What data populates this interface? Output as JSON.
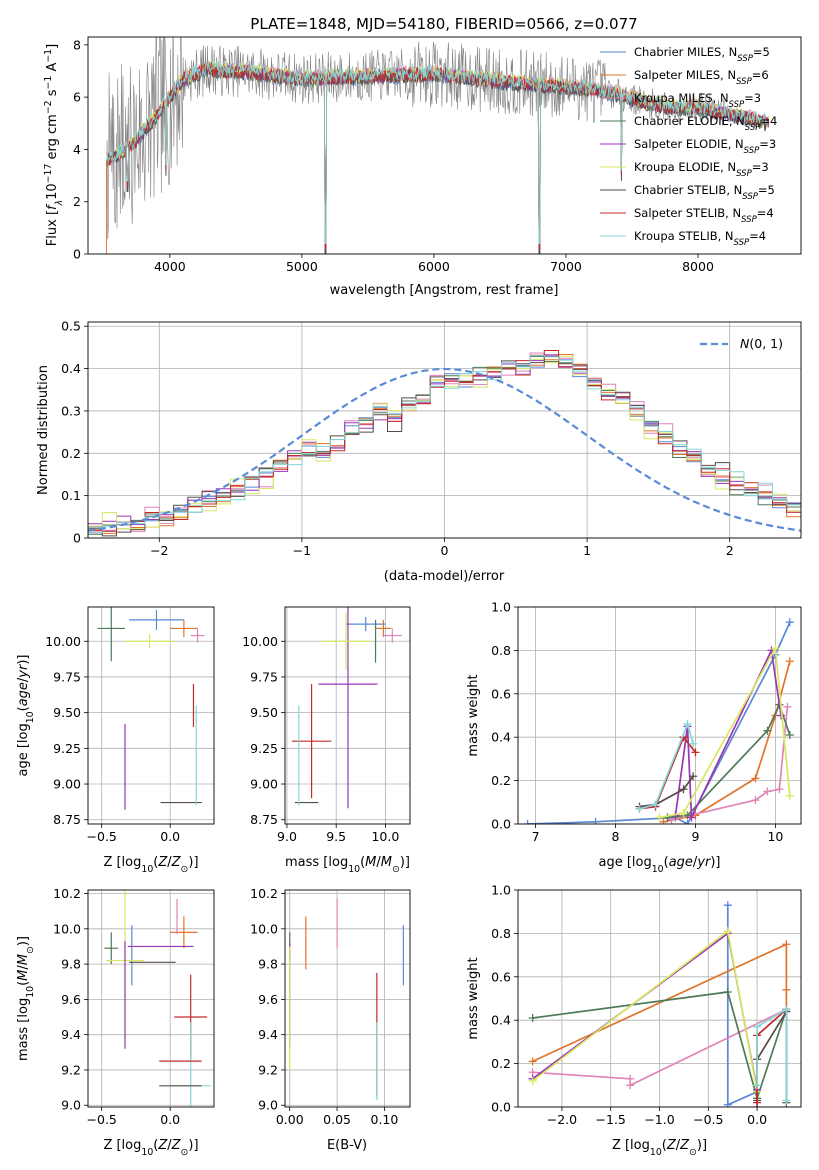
{
  "figure_title": "PLATE=1848, MJD=54180, FIBERID=0566, z=0.077",
  "colors": {
    "Chabrier MILES": "#5b87d4",
    "Salpeter MILES": "#e0742a",
    "Kroupa MILES": "#e084b8",
    "Chabrier ELODIE": "#4f7a58",
    "Salpeter ELODIE": "#9b36b5",
    "Kroupa ELODIE": "#d8e860",
    "Chabrier STELIB": "#5a4a4a",
    "Salpeter STELIB": "#c42a2a",
    "Kroupa STELIB": "#86d6d8",
    "gaussian": "#5b8ad6",
    "data": "#808080"
  },
  "chart_data": [
    {
      "id": "spectrum",
      "type": "line",
      "xlabel": "wavelength [Angstrom, rest frame]",
      "ylabel": "Flux [f_λ10^-17 erg cm^-2 s^-1 A^-1]",
      "xlim": [
        3380,
        8780
      ],
      "ylim": [
        0,
        8.3
      ],
      "xticks": [
        4000,
        5000,
        6000,
        7000,
        8000
      ],
      "yticks": [
        0,
        2,
        4,
        6,
        8
      ],
      "grid": false,
      "legend_position": "right",
      "legend": [
        {
          "name": "Chabrier MILES",
          "nssp": 5
        },
        {
          "name": "Salpeter MILES",
          "nssp": 6
        },
        {
          "name": "Kroupa MILES",
          "nssp": 3
        },
        {
          "name": "Chabrier ELODIE",
          "nssp": 4
        },
        {
          "name": "Salpeter ELODIE",
          "nssp": 3
        },
        {
          "name": "Kroupa ELODIE",
          "nssp": 3
        },
        {
          "name": "Chabrier STELIB",
          "nssp": 5
        },
        {
          "name": "Salpeter STELIB",
          "nssp": 4
        },
        {
          "name": "Kroupa STELIB",
          "nssp": 4
        }
      ],
      "continuum": {
        "x": [
          3520,
          3600,
          3700,
          3800,
          3900,
          4000,
          4100,
          4200,
          4300,
          4400,
          4500,
          4700,
          5000,
          5500,
          6000,
          6500,
          7000,
          7200,
          7400,
          7600,
          7800,
          8000,
          8200,
          8400,
          8540
        ],
        "y": [
          3.6,
          3.8,
          4.1,
          4.7,
          5.3,
          6.0,
          6.7,
          6.9,
          7.1,
          7.0,
          7.0,
          6.9,
          6.7,
          6.8,
          6.9,
          6.6,
          6.4,
          6.3,
          6.1,
          5.8,
          5.6,
          5.6,
          5.4,
          5.2,
          5.0
        ]
      },
      "absorption_drops": [
        {
          "x": 5178,
          "y": 0
        },
        {
          "x": 6800,
          "y": 0
        },
        {
          "x": 3970,
          "y": 3.0
        },
        {
          "x": 3680,
          "y": 2.4
        },
        {
          "x": 7420,
          "y": 2.8
        }
      ]
    },
    {
      "id": "residual_histogram",
      "type": "step",
      "xlabel": "(data-model)/error",
      "ylabel": "Normed distribution",
      "xlim": [
        -2.5,
        2.5
      ],
      "ylim": [
        0,
        0.51
      ],
      "xticks": [
        -2,
        -1,
        0,
        1,
        2
      ],
      "yticks": [
        0,
        0.1,
        0.2,
        0.3,
        0.4,
        0.5
      ],
      "grid": true,
      "legend_position": "top-right",
      "bin_width": 0.1,
      "bin_start": -2.5,
      "gaussian": {
        "name": "N(0,1)",
        "mean": 0,
        "sigma": 1
      },
      "base_values": [
        0.02,
        0.025,
        0.03,
        0.035,
        0.045,
        0.05,
        0.06,
        0.075,
        0.085,
        0.095,
        0.115,
        0.13,
        0.15,
        0.17,
        0.19,
        0.21,
        0.2,
        0.22,
        0.25,
        0.27,
        0.3,
        0.28,
        0.31,
        0.335,
        0.355,
        0.375,
        0.37,
        0.38,
        0.385,
        0.395,
        0.4,
        0.41,
        0.43,
        0.415,
        0.39,
        0.36,
        0.345,
        0.33,
        0.3,
        0.265,
        0.24,
        0.215,
        0.19,
        0.16,
        0.145,
        0.13,
        0.115,
        0.1,
        0.085,
        0.07,
        0.06,
        0.055,
        0.045,
        0.04,
        0.035,
        0.03,
        0.025,
        0.02,
        0.018,
        0.015
      ],
      "jitter": [
        0.0,
        0.012,
        -0.018,
        0.015,
        -0.01,
        0.022,
        -0.02,
        0.01,
        0.018
      ]
    },
    {
      "id": "age_vs_Z",
      "type": "errorbar",
      "xlabel": "Z [log10(Z/Z⊙)]",
      "ylabel": "age [log10(age/yr)]",
      "xlim": [
        -0.6,
        0.32
      ],
      "ylim": [
        8.72,
        10.24
      ],
      "xticks": [
        -0.5,
        0.0
      ],
      "xticklabels": [
        "−0.5",
        "0.0"
      ],
      "yticks": [
        8.75,
        9.0,
        9.25,
        9.5,
        9.75,
        10.0
      ],
      "yticklabels": [
        "8.75",
        "9.00",
        "9.25",
        "9.50",
        "9.75",
        "10.00"
      ],
      "grid": true,
      "points": [
        {
          "series": "Chabrier MILES",
          "x": -0.1,
          "xerr": 0.2,
          "y": 10.15,
          "yerr": 0.07
        },
        {
          "series": "Salpeter MILES",
          "x": 0.1,
          "xerr": 0.1,
          "y": 10.09,
          "yerr": 0.06
        },
        {
          "series": "Kroupa MILES",
          "x": 0.2,
          "xerr": 0.05,
          "y": 10.04,
          "yerr": 0.05
        },
        {
          "series": "Chabrier ELODIE",
          "x": -0.43,
          "xerr": 0.1,
          "y": 10.09,
          "yerr": 0.23
        },
        {
          "series": "Salpeter ELODIE",
          "x": -0.33,
          "xerr": 0.0,
          "y": 9.12,
          "yerr": 0.3
        },
        {
          "series": "Kroupa ELODIE",
          "x": -0.15,
          "xerr": 0.18,
          "y": 10.0,
          "yerr": 0.05
        },
        {
          "series": "Chabrier STELIB",
          "x": 0.08,
          "xerr": 0.15,
          "y": 8.87,
          "yerr": 0.0
        },
        {
          "series": "Salpeter STELIB",
          "x": 0.17,
          "xerr": 0.0,
          "y": 9.55,
          "yerr": 0.15
        },
        {
          "series": "Kroupa STELIB",
          "x": 0.19,
          "xerr": 0.0,
          "y": 9.2,
          "yerr": 0.35
        }
      ]
    },
    {
      "id": "age_vs_mass",
      "type": "errorbar",
      "xlabel": "mass [log10(M/M⊙)]",
      "ylabel": "",
      "xlim": [
        8.98,
        10.25
      ],
      "ylim": [
        8.72,
        10.24
      ],
      "xticks": [
        9.0,
        9.5,
        10.0
      ],
      "xticklabels": [
        "9.0",
        "9.5",
        "10.0"
      ],
      "yticks": [
        8.75,
        9.0,
        9.25,
        9.5,
        9.75,
        10.0
      ],
      "yticklabels": [
        "8.75",
        "9.00",
        "9.25",
        "9.50",
        "9.75",
        "10.00"
      ],
      "grid": true,
      "points": [
        {
          "series": "Chabrier MILES",
          "x": 9.8,
          "xerr": 0.2,
          "y": 10.12,
          "yerr": 0.05
        },
        {
          "series": "Salpeter MILES",
          "x": 9.98,
          "xerr": 0.08,
          "y": 10.09,
          "yerr": 0.06
        },
        {
          "series": "Kroupa MILES",
          "x": 10.07,
          "xerr": 0.1,
          "y": 10.04,
          "yerr": 0.05
        },
        {
          "series": "Chabrier ELODIE",
          "x": 9.9,
          "xerr": 0.0,
          "y": 10.0,
          "yerr": 0.15
        },
        {
          "series": "Salpeter ELODIE",
          "x": 9.62,
          "xerr": 0.3,
          "y": 9.7,
          "yerr": 0.87
        },
        {
          "series": "Kroupa ELODIE",
          "x": 9.6,
          "xerr": 0.25,
          "y": 10.0,
          "yerr": 0.2
        },
        {
          "series": "Chabrier STELIB",
          "x": 9.2,
          "xerr": 0.12,
          "y": 8.87,
          "yerr": 0.0
        },
        {
          "series": "Salpeter STELIB",
          "x": 9.25,
          "xerr": 0.2,
          "y": 9.3,
          "yerr": 0.4
        },
        {
          "series": "Kroupa STELIB",
          "x": 9.12,
          "xerr": 0.0,
          "y": 9.2,
          "yerr": 0.35
        }
      ]
    },
    {
      "id": "mass_vs_Z",
      "type": "errorbar",
      "xlabel": "Z [log10(Z/Z⊙)]",
      "ylabel": "mass [log10(M/M⊙)]",
      "xlim": [
        -0.6,
        0.32
      ],
      "ylim": [
        8.99,
        10.22
      ],
      "xticks": [
        -0.5,
        0.0
      ],
      "xticklabels": [
        "−0.5",
        "0.0"
      ],
      "yticks": [
        9.0,
        9.2,
        9.4,
        9.6,
        9.8,
        10.0,
        10.2
      ],
      "yticklabels": [
        "9.0",
        "9.2",
        "9.4",
        "9.6",
        "9.8",
        "10.0",
        "10.2"
      ],
      "grid": true,
      "points": [
        {
          "series": "Chabrier MILES",
          "x": -0.28,
          "xerr": 0.0,
          "y": 9.85,
          "yerr": 0.17
        },
        {
          "series": "Salpeter MILES",
          "x": 0.1,
          "xerr": 0.1,
          "y": 9.98,
          "yerr": 0.09
        },
        {
          "series": "Kroupa MILES",
          "x": 0.05,
          "xerr": 0.0,
          "y": 10.07,
          "yerr": 0.1
        },
        {
          "series": "Chabrier ELODIE",
          "x": -0.43,
          "xerr": 0.05,
          "y": 9.89,
          "yerr": 0.09
        },
        {
          "series": "Salpeter ELODIE",
          "x": -0.07,
          "xerr": 0.24,
          "y": 9.9,
          "yerr": 0.0
        },
        {
          "series": "Kroupa ELODIE",
          "x": -0.33,
          "xerr": 0.14,
          "y": 9.82,
          "yerr": 0.48
        },
        {
          "series": "Chabrier STELIB",
          "x": -0.13,
          "xerr": 0.17,
          "y": 9.81,
          "yerr": 0.0
        },
        {
          "series": "Salpeter STELIB",
          "x": 0.15,
          "xerr": 0.12,
          "y": 9.5,
          "yerr": 0.24
        },
        {
          "series": "Kroupa STELIB",
          "x": 0.15,
          "xerr": 0.15,
          "y": 9.11,
          "yerr": 0.36
        }
      ],
      "extra_segments": [
        {
          "series": "Salpeter STELIB",
          "x1": -0.08,
          "x2": 0.23,
          "y": 9.25
        },
        {
          "series": "Chabrier STELIB",
          "x1": -0.08,
          "x2": 0.23,
          "y": 9.11
        },
        {
          "series": "Salpeter ELODIE",
          "x1": -0.33,
          "x2": -0.33,
          "y1": 9.32,
          "y2": 9.93
        }
      ]
    },
    {
      "id": "mass_vs_EBV",
      "type": "errorbar",
      "xlabel": "E(B-V)",
      "ylabel": "",
      "xlim": [
        -0.005,
        0.127
      ],
      "ylim": [
        8.99,
        10.22
      ],
      "xticks": [
        0.0,
        0.05,
        0.1
      ],
      "xticklabels": [
        "0.00",
        "0.05",
        "0.10"
      ],
      "yticks": [
        9.0,
        9.2,
        9.4,
        9.6,
        9.8,
        10.0,
        10.2
      ],
      "yticklabels": [
        "9.0",
        "9.2",
        "9.4",
        "9.6",
        "9.8",
        "10.0",
        "10.2"
      ],
      "grid": true,
      "points": [
        {
          "series": "Chabrier MILES",
          "x": 0.12,
          "xerr": 0.0,
          "y": 9.85,
          "yerr": 0.17
        },
        {
          "series": "Salpeter MILES",
          "x": 0.017,
          "xerr": 0.0,
          "y": 9.92,
          "yerr": 0.15
        },
        {
          "series": "Kroupa MILES",
          "x": 0.05,
          "xerr": 0.0,
          "y": 10.03,
          "yerr": 0.14
        },
        {
          "series": "Chabrier ELODIE",
          "x": 0.0,
          "xerr": 0.0,
          "y": 9.89,
          "yerr": 0.09
        },
        {
          "series": "Salpeter ELODIE",
          "x": 0.0,
          "xerr": 0.0,
          "y": 9.62,
          "yerr": 0.3
        },
        {
          "series": "Kroupa ELODIE",
          "x": 0.0,
          "xerr": 0.0,
          "y": 9.55,
          "yerr": 0.35
        },
        {
          "series": "Chabrier STELIB",
          "x": 0.092,
          "xerr": 0.0,
          "y": 9.25,
          "yerr": 0.2
        },
        {
          "series": "Salpeter STELIB",
          "x": 0.092,
          "xerr": 0.0,
          "y": 9.6,
          "yerr": 0.15
        },
        {
          "series": "Kroupa STELIB",
          "x": 0.092,
          "xerr": 0.0,
          "y": 9.25,
          "yerr": 0.22
        }
      ]
    },
    {
      "id": "weight_vs_age",
      "type": "line",
      "xlabel": "age [log10(age/yr)]",
      "ylabel": "mass weight",
      "xlim": [
        6.78,
        10.32
      ],
      "ylim": [
        0,
        1.0
      ],
      "xticks": [
        7,
        8,
        9,
        10
      ],
      "xticklabels": [
        "7",
        "8",
        "9",
        "10"
      ],
      "yticks": [
        0,
        0.2,
        0.4,
        0.6,
        0.8,
        1.0
      ],
      "yticklabels": [
        "0.0",
        "0.2",
        "0.4",
        "0.6",
        "0.8",
        "1.0"
      ],
      "grid": true,
      "series": [
        {
          "name": "Chabrier MILES",
          "x": [
            6.9,
            7.75,
            8.75,
            8.9,
            10.0,
            10.18
          ],
          "y": [
            0.0,
            0.01,
            0.03,
            0.0,
            0.78,
            0.93
          ]
        },
        {
          "name": "Salpeter MILES",
          "x": [
            8.6,
            9.0,
            9.75,
            10.0,
            10.18
          ],
          "y": [
            0.01,
            0.04,
            0.21,
            0.5,
            0.75
          ]
        },
        {
          "name": "Kroupa MILES",
          "x": [
            8.7,
            9.75,
            9.9,
            10.05,
            10.15
          ],
          "y": [
            0.02,
            0.11,
            0.15,
            0.16,
            0.54
          ]
        },
        {
          "name": "Chabrier ELODIE",
          "x": [
            8.65,
            8.9,
            9.9,
            10.05,
            10.18
          ],
          "y": [
            0.03,
            0.04,
            0.43,
            0.55,
            0.41
          ]
        },
        {
          "name": "Salpeter ELODIE",
          "x": [
            8.75,
            8.9,
            8.95,
            9.95,
            10.07
          ],
          "y": [
            0.04,
            0.45,
            0.03,
            0.8,
            0.5
          ]
        },
        {
          "name": "Kroupa ELODIE",
          "x": [
            8.55,
            8.85,
            10.0,
            10.18
          ],
          "y": [
            0.03,
            0.05,
            0.81,
            0.13
          ]
        },
        {
          "name": "Chabrier STELIB",
          "x": [
            8.3,
            8.5,
            8.85,
            8.97
          ],
          "y": [
            0.08,
            0.09,
            0.16,
            0.22
          ]
        },
        {
          "name": "Salpeter STELIB",
          "x": [
            8.3,
            8.5,
            8.85,
            9.0
          ],
          "y": [
            0.07,
            0.08,
            0.4,
            0.33
          ]
        },
        {
          "name": "Kroupa STELIB",
          "x": [
            8.3,
            8.5,
            8.9,
            8.97
          ],
          "y": [
            0.07,
            0.09,
            0.46,
            0.37
          ]
        }
      ]
    },
    {
      "id": "weight_vs_Z",
      "type": "line",
      "xlabel": "Z [log10(Z/Z⊙)]",
      "ylabel": "mass weight",
      "xlim": [
        -2.45,
        0.45
      ],
      "ylim": [
        0,
        1.0
      ],
      "xticks": [
        -2.0,
        -1.5,
        -1.0,
        -0.5,
        0.0
      ],
      "xticklabels": [
        "−2.0",
        "−1.5",
        "−1.0",
        "−0.5",
        "0.0"
      ],
      "yticks": [
        0,
        0.2,
        0.4,
        0.6,
        0.8,
        1.0
      ],
      "yticklabels": [
        "0.0",
        "0.2",
        "0.4",
        "0.6",
        "0.8",
        "1.0"
      ],
      "grid": true,
      "series": [
        {
          "name": "Chabrier MILES",
          "x": [
            -0.3,
            -0.3,
            0.0,
            0.0
          ],
          "y": [
            0.93,
            0.01,
            0.07,
            0.0
          ]
        },
        {
          "name": "Salpeter MILES",
          "x": [
            -2.3,
            0.3,
            0.3,
            0.3
          ],
          "y": [
            0.21,
            0.75,
            0.54,
            0.02
          ]
        },
        {
          "name": "Kroupa MILES",
          "x": [
            -2.3,
            -1.3,
            -1.3,
            0.3,
            0.3
          ],
          "y": [
            0.16,
            0.13,
            0.1,
            0.45,
            0.44
          ]
        },
        {
          "name": "Chabrier ELODIE",
          "x": [
            -2.3,
            -0.3,
            0.0,
            0.3,
            0.3
          ],
          "y": [
            0.41,
            0.53,
            0.04,
            0.45,
            0.02
          ]
        },
        {
          "name": "Salpeter ELODIE",
          "x": [
            -2.3,
            -0.3,
            0.0
          ],
          "y": [
            0.13,
            0.8,
            0.08
          ]
        },
        {
          "name": "Kroupa ELODIE",
          "x": [
            -2.3,
            -0.3,
            0.0
          ],
          "y": [
            0.12,
            0.81,
            0.07
          ]
        },
        {
          "name": "Chabrier STELIB",
          "x": [
            0.0,
            0.0,
            0.3
          ],
          "y": [
            0.03,
            0.22,
            0.44
          ]
        },
        {
          "name": "Salpeter STELIB",
          "x": [
            0.0,
            0.0,
            0.3
          ],
          "y": [
            0.02,
            0.33,
            0.45
          ]
        },
        {
          "name": "Kroupa STELIB",
          "x": [
            0.0,
            0.0,
            0.3,
            0.3
          ],
          "y": [
            0.1,
            0.37,
            0.45,
            0.03
          ]
        }
      ]
    }
  ]
}
